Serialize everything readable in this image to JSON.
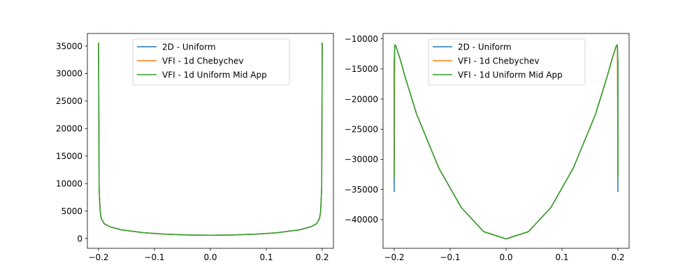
{
  "chart_data": [
    {
      "type": "line",
      "xlim": [
        -0.22,
        0.22
      ],
      "ylim": [
        -1780,
        37280
      ],
      "xticks": [
        -0.2,
        -0.1,
        0.0,
        0.1,
        0.2
      ],
      "xtick_labels": [
        "−0.2",
        "−0.1",
        "0.0",
        "0.1",
        "0.2"
      ],
      "yticks": [
        0,
        5000,
        10000,
        15000,
        20000,
        25000,
        30000,
        35000
      ],
      "ytick_labels": [
        "0",
        "5000",
        "10000",
        "15000",
        "20000",
        "25000",
        "30000",
        "35000"
      ],
      "legend_position": "top-center",
      "series": [
        {
          "name": "2D - Uniform",
          "color": "#1f77b4",
          "x": [
            -0.2,
            -0.199,
            -0.197,
            -0.195,
            -0.19,
            -0.18,
            -0.16,
            -0.12,
            -0.08,
            -0.04,
            0.0,
            0.04,
            0.08,
            0.12,
            0.16,
            0.18,
            0.19,
            0.195,
            0.197,
            0.199,
            0.2
          ],
          "y": [
            35500,
            9000,
            4800,
            3600,
            2700,
            2150,
            1600,
            1050,
            780,
            650,
            600,
            650,
            780,
            1050,
            1600,
            2150,
            2700,
            3600,
            4800,
            9000,
            35500
          ]
        },
        {
          "name": "VFI - 1d Chebychev",
          "color": "#ff7f0e",
          "x": [
            -0.2,
            -0.199,
            -0.197,
            -0.195,
            -0.19,
            -0.18,
            -0.16,
            -0.12,
            -0.08,
            -0.04,
            0.0,
            0.04,
            0.08,
            0.12,
            0.16,
            0.18,
            0.19,
            0.195,
            0.197,
            0.199,
            0.2
          ],
          "y": [
            35500,
            9000,
            4800,
            3600,
            2700,
            2150,
            1600,
            1050,
            780,
            650,
            600,
            650,
            780,
            1050,
            1600,
            2150,
            2700,
            3600,
            4800,
            9000,
            35500
          ]
        },
        {
          "name": "VFI - 1d Uniform Mid App",
          "color": "#2ca02c",
          "x": [
            -0.2,
            -0.199,
            -0.197,
            -0.195,
            -0.19,
            -0.18,
            -0.16,
            -0.12,
            -0.08,
            -0.04,
            0.0,
            0.04,
            0.08,
            0.12,
            0.16,
            0.18,
            0.19,
            0.195,
            0.197,
            0.199,
            0.2
          ],
          "y": [
            35500,
            9000,
            4800,
            3600,
            2700,
            2150,
            1600,
            1050,
            780,
            650,
            600,
            650,
            780,
            1050,
            1600,
            2150,
            2700,
            3600,
            4800,
            9000,
            35500
          ]
        }
      ]
    },
    {
      "type": "line",
      "xlim": [
        -0.22,
        0.22
      ],
      "ylim": [
        -44760,
        -9120
      ],
      "xticks": [
        -0.2,
        -0.1,
        0.0,
        0.1,
        0.2
      ],
      "xtick_labels": [
        "−0.2",
        "−0.1",
        "0.0",
        "0.1",
        "0.2"
      ],
      "yticks": [
        -40000,
        -35000,
        -30000,
        -25000,
        -20000,
        -15000,
        -10000
      ],
      "ytick_labels": [
        "−40000",
        "−35000",
        "−30000",
        "−25000",
        "−20000",
        "−15000",
        "−10000"
      ],
      "legend_position": "top-center",
      "series": [
        {
          "name": "2D - Uniform",
          "color": "#1f77b4",
          "x": [
            -0.2,
            -0.2,
            -0.199,
            -0.197,
            -0.195,
            -0.19,
            -0.18,
            -0.16,
            -0.12,
            -0.08,
            -0.04,
            0.0,
            0.04,
            0.08,
            0.12,
            0.16,
            0.18,
            0.19,
            0.195,
            0.197,
            0.199,
            0.2,
            0.2
          ],
          "y": [
            -35300,
            -14000,
            -11000,
            -11200,
            -11800,
            -13200,
            -16500,
            -22500,
            -31500,
            -38000,
            -42000,
            -43200,
            -42000,
            -38000,
            -31500,
            -22500,
            -16500,
            -13200,
            -11800,
            -11200,
            -11000,
            -14000,
            -35300
          ]
        },
        {
          "name": "VFI - 1d Chebychev",
          "color": "#ff7f0e",
          "x": [
            -0.2,
            -0.199,
            -0.197,
            -0.195,
            -0.19,
            -0.18,
            -0.16,
            -0.12,
            -0.08,
            -0.04,
            0.0,
            0.04,
            0.08,
            0.12,
            0.16,
            0.18,
            0.19,
            0.195,
            0.197,
            0.199,
            0.2
          ],
          "y": [
            -33000,
            -11000,
            -11200,
            -11800,
            -13200,
            -16500,
            -22500,
            -31500,
            -38000,
            -42000,
            -43200,
            -42000,
            -38000,
            -31500,
            -22500,
            -16500,
            -13200,
            -11800,
            -11200,
            -11000,
            -33000
          ]
        },
        {
          "name": "VFI - 1d Uniform Mid App",
          "color": "#2ca02c",
          "x": [
            -0.2,
            -0.2,
            -0.199,
            -0.197,
            -0.195,
            -0.19,
            -0.18,
            -0.16,
            -0.12,
            -0.08,
            -0.04,
            0.0,
            0.04,
            0.08,
            0.12,
            0.16,
            0.18,
            0.19,
            0.195,
            0.197,
            0.199,
            0.2,
            0.2
          ],
          "y": [
            -33000,
            -14000,
            -11000,
            -11200,
            -11800,
            -13200,
            -16500,
            -22500,
            -31500,
            -38000,
            -42000,
            -43200,
            -42000,
            -38000,
            -31500,
            -22500,
            -16500,
            -13200,
            -11800,
            -11200,
            -11000,
            -14000,
            -33000
          ]
        }
      ]
    }
  ]
}
